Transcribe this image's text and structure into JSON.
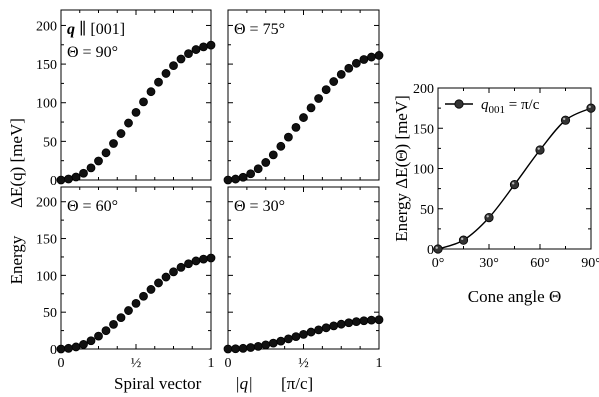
{
  "chart_data": [
    {
      "type": "scatter",
      "panel": "top-left",
      "annotation_lines": [
        "q ∥ [001]",
        "Θ = 90°"
      ],
      "xlim": [
        0,
        1
      ],
      "ylim": [
        0,
        220
      ],
      "x_ticks": [
        0,
        0.5,
        1
      ],
      "x_tick_labels": [
        "",
        "",
        ""
      ],
      "y_ticks": [
        0,
        50,
        100,
        150,
        200
      ],
      "y_tick_labels": [
        "0",
        "50",
        "100",
        "150",
        "200"
      ],
      "series": [
        {
          "x": [
            0.0,
            0.05,
            0.1,
            0.15,
            0.2,
            0.25,
            0.3,
            0.35,
            0.4,
            0.45,
            0.5,
            0.55,
            0.6,
            0.65,
            0.7,
            0.75,
            0.8,
            0.85,
            0.9,
            0.95,
            1.0
          ],
          "y": [
            0.0,
            1.3,
            3.9,
            8.7,
            15.7,
            24.6,
            35.2,
            47.2,
            60.1,
            73.7,
            87.5,
            101.1,
            114.3,
            126.6,
            137.9,
            148.0,
            156.6,
            163.5,
            168.8,
            172.3,
            174.5
          ]
        }
      ]
    },
    {
      "type": "scatter",
      "panel": "top-right",
      "annotation_lines": [
        "Θ = 75°"
      ],
      "xlim": [
        0,
        1
      ],
      "ylim": [
        0,
        220
      ],
      "x_ticks": [
        0,
        0.5,
        1
      ],
      "x_tick_labels": [
        "",
        "",
        ""
      ],
      "y_ticks": [
        0,
        50,
        100,
        150,
        200
      ],
      "y_tick_labels": [
        "",
        "",
        "",
        "",
        ""
      ],
      "series": [
        {
          "x": [
            0.0,
            0.05,
            0.1,
            0.15,
            0.2,
            0.25,
            0.3,
            0.35,
            0.4,
            0.45,
            0.5,
            0.55,
            0.6,
            0.65,
            0.7,
            0.75,
            0.8,
            0.85,
            0.9,
            0.95,
            1.0
          ],
          "y": [
            0.0,
            1.2,
            3.6,
            8.1,
            14.6,
            22.7,
            32.5,
            43.6,
            55.5,
            68.1,
            80.8,
            93.4,
            105.5,
            116.9,
            127.4,
            136.7,
            144.6,
            151.0,
            155.9,
            159.1,
            161.2
          ]
        }
      ]
    },
    {
      "type": "scatter",
      "panel": "bottom-left",
      "annotation_lines": [
        "Θ = 60°"
      ],
      "xlim": [
        0,
        1
      ],
      "ylim": [
        0,
        220
      ],
      "x_ticks": [
        0,
        0.5,
        1
      ],
      "x_tick_labels": [
        "0",
        "½",
        "1"
      ],
      "y_ticks": [
        0,
        50,
        100,
        150,
        200
      ],
      "y_tick_labels": [
        "0",
        "50",
        "100",
        "150",
        "200"
      ],
      "series": [
        {
          "x": [
            0.0,
            0.05,
            0.1,
            0.15,
            0.2,
            0.25,
            0.3,
            0.35,
            0.4,
            0.45,
            0.5,
            0.55,
            0.6,
            0.65,
            0.7,
            0.75,
            0.8,
            0.85,
            0.9,
            0.95,
            1.0
          ],
          "y": [
            0.0,
            0.9,
            2.8,
            6.2,
            11.2,
            17.5,
            24.9,
            33.4,
            42.6,
            52.2,
            62.0,
            71.6,
            80.9,
            89.7,
            97.7,
            104.8,
            110.9,
            115.8,
            119.6,
            122.1,
            123.6
          ]
        }
      ]
    },
    {
      "type": "scatter",
      "panel": "bottom-right",
      "annotation_lines": [
        "Θ = 30°"
      ],
      "xlim": [
        0,
        1
      ],
      "ylim": [
        0,
        220
      ],
      "x_ticks": [
        0,
        0.5,
        1
      ],
      "x_tick_labels": [
        "0",
        "½",
        "1"
      ],
      "y_ticks": [
        0,
        50,
        100,
        150,
        200
      ],
      "y_tick_labels": [
        "",
        "",
        "",
        "",
        ""
      ],
      "series": [
        {
          "x": [
            0.0,
            0.05,
            0.1,
            0.15,
            0.2,
            0.25,
            0.3,
            0.35,
            0.4,
            0.45,
            0.5,
            0.55,
            0.6,
            0.65,
            0.7,
            0.75,
            0.8,
            0.85,
            0.9,
            0.95,
            1.0
          ],
          "y": [
            0.0,
            0.3,
            0.9,
            2.0,
            3.6,
            5.6,
            8.0,
            10.7,
            13.7,
            16.8,
            19.9,
            23.0,
            26.0,
            28.8,
            31.4,
            33.7,
            35.6,
            37.2,
            38.4,
            39.2,
            39.7
          ]
        }
      ]
    },
    {
      "type": "line",
      "panel": "right",
      "xlabel": "Cone angle Θ",
      "ylabel": "Energy ΔE(Θ) [meV]",
      "xlim": [
        0,
        90
      ],
      "ylim": [
        0,
        200
      ],
      "x_ticks": [
        0,
        30,
        60,
        90
      ],
      "x_tick_labels": [
        "0°",
        "30°",
        "60°",
        "90°"
      ],
      "y_ticks": [
        0,
        50,
        100,
        150,
        200
      ],
      "y_tick_labels": [
        "0",
        "50",
        "100",
        "150",
        "200"
      ],
      "legend_position": "top",
      "series": [
        {
          "name": "q001 = π/c",
          "x": [
            0,
            15,
            30,
            45,
            60,
            75,
            90
          ],
          "y": [
            0,
            11,
            39,
            80,
            123,
            160,
            175
          ]
        }
      ]
    }
  ],
  "shared_labels": {
    "ylabel_energy": "Energy",
    "ylabel_delta": "ΔE(q) [meV]",
    "xlabel_spiral": "Spiral vector",
    "xlabel_q": "|q|",
    "xlabel_unit": "[π/c]"
  }
}
